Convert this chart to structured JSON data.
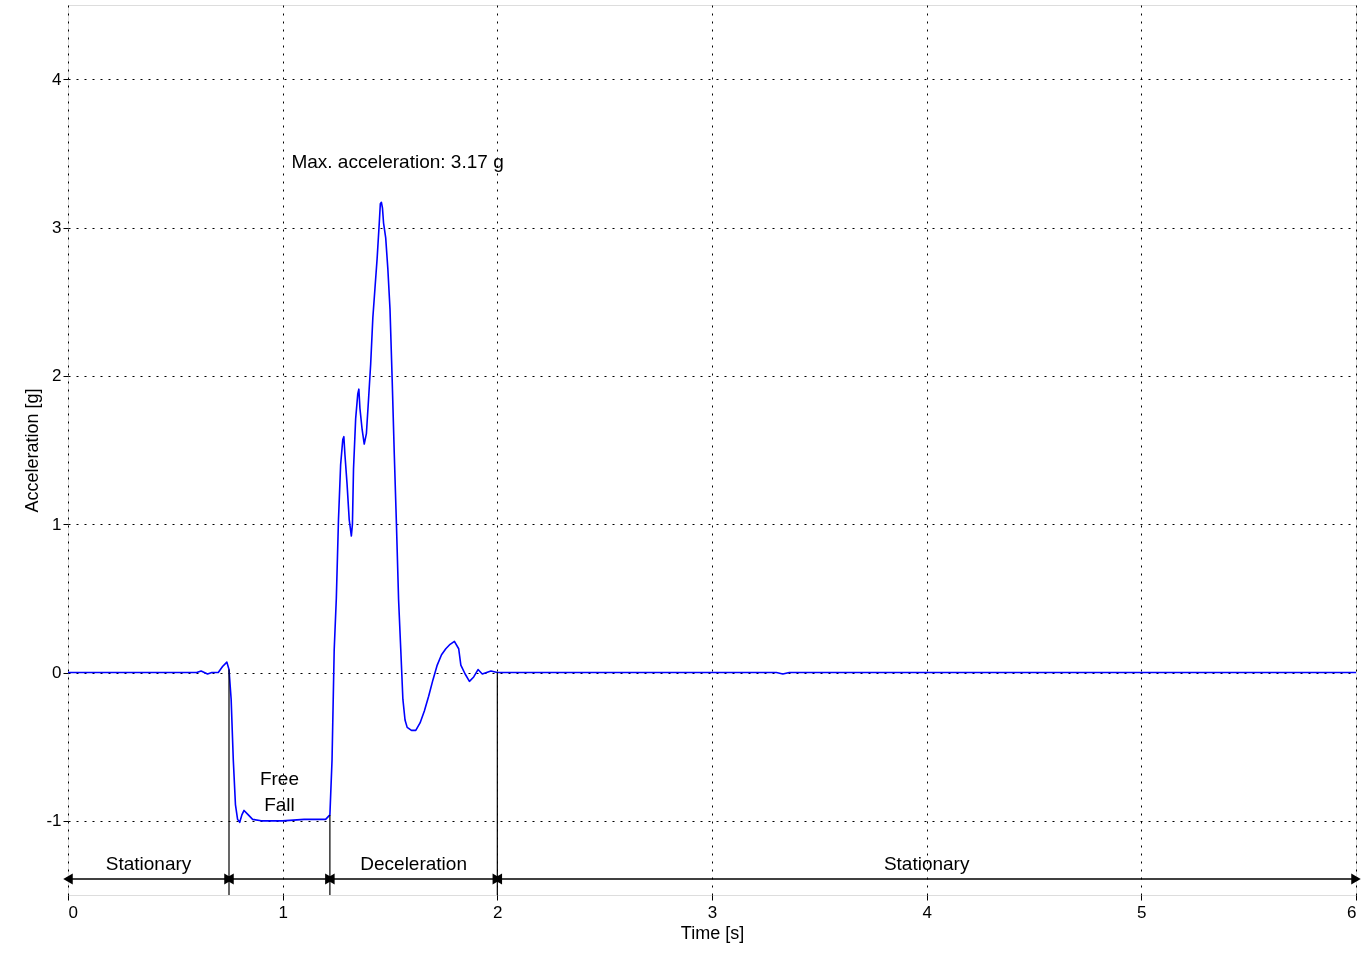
{
  "chart_data": {
    "type": "line",
    "xlabel": "Time [s]",
    "ylabel": "Acceleration [g]",
    "x": [
      0,
      0.6,
      0.62,
      0.65,
      0.67,
      0.7,
      0.72,
      0.74,
      0.75,
      0.76,
      0.77,
      0.78,
      0.79,
      0.8,
      0.81,
      0.82,
      0.84,
      0.86,
      0.9,
      1.0,
      1.1,
      1.2,
      1.22,
      1.23,
      1.24,
      1.25,
      1.26,
      1.27,
      1.28,
      1.285,
      1.29,
      1.3,
      1.31,
      1.32,
      1.325,
      1.33,
      1.34,
      1.35,
      1.355,
      1.36,
      1.37,
      1.38,
      1.39,
      1.4,
      1.41,
      1.42,
      1.43,
      1.44,
      1.45,
      1.455,
      1.46,
      1.465,
      1.47,
      1.48,
      1.49,
      1.5,
      1.51,
      1.52,
      1.53,
      1.54,
      1.55,
      1.56,
      1.57,
      1.58,
      1.6,
      1.62,
      1.64,
      1.66,
      1.68,
      1.7,
      1.72,
      1.74,
      1.76,
      1.78,
      1.8,
      1.82,
      1.83,
      1.85,
      1.87,
      1.89,
      1.91,
      1.93,
      1.95,
      1.97,
      2.0,
      3.3,
      3.33,
      3.36,
      6
    ],
    "series": [
      {
        "color": "#0000ff",
        "values": [
          0,
          0,
          0.01,
          -0.01,
          0,
          0,
          0.04,
          0.07,
          0.02,
          -0.18,
          -0.59,
          -0.89,
          -0.99,
          -1.01,
          -0.96,
          -0.93,
          -0.96,
          -0.99,
          -1.0,
          -1.0,
          -0.99,
          -0.99,
          -0.96,
          -0.59,
          0.15,
          0.5,
          1.03,
          1.4,
          1.57,
          1.59,
          1.47,
          1.27,
          1.03,
          0.92,
          1.0,
          1.37,
          1.71,
          1.88,
          1.91,
          1.78,
          1.64,
          1.54,
          1.61,
          1.84,
          2.08,
          2.39,
          2.59,
          2.79,
          3.03,
          3.16,
          3.17,
          3.13,
          3.03,
          2.93,
          2.72,
          2.45,
          1.98,
          1.47,
          1.0,
          0.49,
          0.16,
          -0.18,
          -0.32,
          -0.37,
          -0.39,
          -0.39,
          -0.34,
          -0.26,
          -0.16,
          -0.05,
          0.05,
          0.12,
          0.16,
          0.19,
          0.21,
          0.16,
          0.05,
          -0.01,
          -0.06,
          -0.03,
          0.02,
          -0.01,
          0,
          0.01,
          0,
          0,
          -0.01,
          0,
          0
        ]
      }
    ],
    "xlim": [
      0,
      6
    ],
    "ylim": [
      -1.5,
      4.5
    ],
    "xticks": [
      0,
      1,
      2,
      3,
      4,
      5,
      6
    ],
    "yticks": [
      -1,
      0,
      1,
      2,
      3,
      4
    ],
    "grid": true,
    "line_style": "solid",
    "marker": "none",
    "annotations": [
      {
        "text": "Max. acceleration: 3.17 g",
        "x": 1.46,
        "y": 3.17
      },
      "Stationary",
      "Free\nFall",
      "Deceleration",
      "Stationary"
    ],
    "ref_lines": [
      {
        "axis": "x",
        "value": 0.75,
        "color": "#000000"
      },
      {
        "axis": "x",
        "value": 1.22,
        "color": "#000000"
      },
      {
        "axis": "x",
        "value": 2.0,
        "color": "#000000"
      }
    ]
  }
}
